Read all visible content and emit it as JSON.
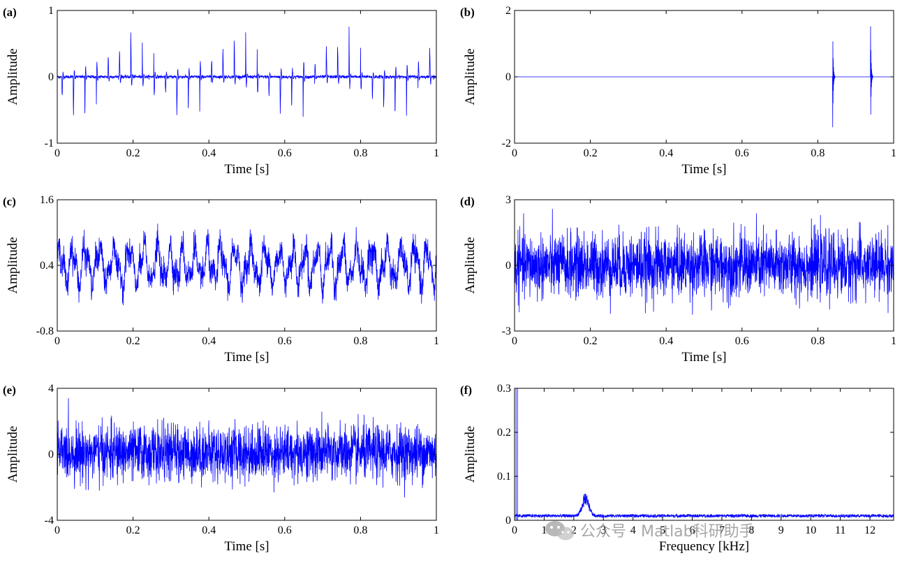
{
  "watermark": {
    "text": "公众号 · Matlab科研助手",
    "icon": "wechat-logo-icon"
  },
  "chart_data": [
    {
      "id": "a",
      "panel_label": "(a)",
      "type": "line",
      "signal": "periodic-impulses",
      "xlabel": "Time [s]",
      "ylabel": "Amplitude",
      "xlim": [
        0,
        1
      ],
      "ylim": [
        -1,
        1
      ],
      "xticks": [
        0,
        0.2,
        0.4,
        0.6,
        0.8,
        1
      ],
      "xtick_labels": [
        "0",
        "0.2",
        "0.4",
        "0.6",
        "0.8",
        "1"
      ],
      "yticks": [
        -1,
        0,
        1
      ],
      "ytick_labels": [
        "-1",
        "0",
        "1"
      ],
      "impulse_period_s": 0.0303,
      "peak_amplitude": [
        0.9,
        -0.75
      ],
      "color": "#0000ff"
    },
    {
      "id": "b",
      "panel_label": "(b)",
      "type": "line",
      "signal": "isolated-impulses",
      "xlabel": "Time [s]",
      "ylabel": "Amplitude",
      "xlim": [
        0,
        1
      ],
      "ylim": [
        -2,
        2
      ],
      "xticks": [
        0,
        0.2,
        0.4,
        0.6,
        0.8,
        1
      ],
      "xtick_labels": [
        "0",
        "0.2",
        "0.4",
        "0.6",
        "0.8",
        "1"
      ],
      "yticks": [
        -2,
        0,
        2
      ],
      "ytick_labels": [
        "-2",
        "0",
        "2"
      ],
      "impulse_times_s": [
        0.839,
        0.939
      ],
      "peak_amplitude": [
        1.7,
        -1.8
      ],
      "color": "#0000ff"
    },
    {
      "id": "c",
      "panel_label": "(c)",
      "type": "line",
      "signal": "low-frequency-random",
      "xlabel": "Time [s]",
      "ylabel": "Amplitude",
      "xlim": [
        0,
        1
      ],
      "ylim": [
        -0.8,
        1.6
      ],
      "xticks": [
        0,
        0.2,
        0.4,
        0.6,
        0.8,
        1
      ],
      "xtick_labels": [
        "0",
        "0.2",
        "0.4",
        "0.6",
        "0.8",
        "1"
      ],
      "yticks": [
        -0.8,
        0.4,
        1.6
      ],
      "ytick_labels": [
        "-0.8",
        "0.4",
        "1.6"
      ],
      "mean": 0.4,
      "range": [
        -0.4,
        1.2
      ],
      "color": "#0000ff"
    },
    {
      "id": "d",
      "panel_label": "(d)",
      "type": "line",
      "signal": "white-noise",
      "xlabel": "Time [s]",
      "ylabel": "Amplitude",
      "xlim": [
        0,
        1
      ],
      "ylim": [
        -3,
        3
      ],
      "xticks": [
        0,
        0.2,
        0.4,
        0.6,
        0.8,
        1
      ],
      "xtick_labels": [
        "0",
        "0.2",
        "0.4",
        "0.6",
        "0.8",
        "1"
      ],
      "yticks": [
        -3,
        0,
        3
      ],
      "ytick_labels": [
        "-3",
        "0",
        "3"
      ],
      "range": [
        -2.6,
        2.6
      ],
      "color": "#0000ff"
    },
    {
      "id": "e",
      "panel_label": "(e)",
      "type": "line",
      "signal": "composite-noise",
      "xlabel": "Time [s]",
      "ylabel": "Amplitude",
      "xlim": [
        0,
        1
      ],
      "ylim": [
        -4,
        4
      ],
      "xticks": [
        0,
        0.2,
        0.4,
        0.6,
        0.8,
        1
      ],
      "xtick_labels": [
        "0",
        "0.2",
        "0.4",
        "0.6",
        "0.8",
        "1"
      ],
      "yticks": [
        -4,
        0,
        4
      ],
      "ytick_labels": [
        "-4",
        "0",
        "4"
      ],
      "range": [
        -3.1,
        3.4
      ],
      "color": "#0000ff"
    },
    {
      "id": "f",
      "panel_label": "(f)",
      "type": "line",
      "signal": "envelope-spectrum",
      "xlabel": "Frequency [kHz]",
      "ylabel": "Amplitude",
      "xlim": [
        0,
        12.8
      ],
      "ylim": [
        0,
        0.3
      ],
      "xticks": [
        0,
        1,
        2,
        3,
        4,
        5,
        6,
        7,
        8,
        9,
        10,
        11,
        12
      ],
      "xtick_labels": [
        "0",
        "1",
        "2",
        "3",
        "4",
        "5",
        "6",
        "7",
        "8",
        "9",
        "10",
        "11",
        "12"
      ],
      "yticks": [
        0,
        0.1,
        0.2,
        0.3
      ],
      "ytick_labels": [
        "0",
        "0.1",
        "0.2",
        "0.3"
      ],
      "low_freq_peaks_khz": [
        0.05,
        0.1
      ],
      "resonance_peak": {
        "x": 2.4,
        "y": 0.065
      },
      "noise_floor": 0.012,
      "color": "#0000ff"
    }
  ]
}
